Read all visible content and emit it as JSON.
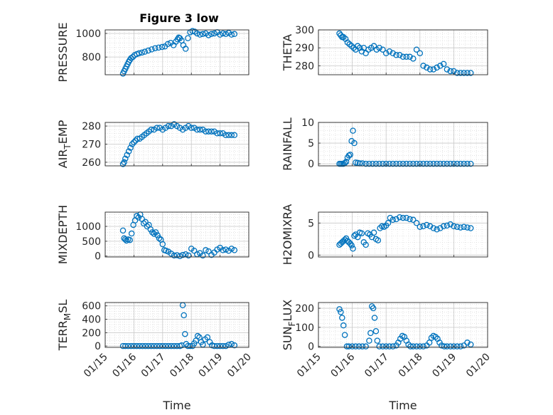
{
  "figure": {
    "title": "Figure 3 low",
    "marker_color": "#0072BD",
    "grid": true,
    "minor_grid": true
  },
  "x_axis": {
    "label": "Time",
    "tick_values": [
      0,
      1,
      2,
      3,
      4,
      5
    ],
    "tick_labels": [
      "01/15",
      "01/16",
      "01/17",
      "01/18",
      "01/19",
      "01/20"
    ],
    "range": [
      0,
      5
    ]
  },
  "chart_data": [
    {
      "type": "scatter",
      "marker": "circle",
      "ylabel": "PRESSURE",
      "ylim": [
        650,
        1030
      ],
      "yticks": [
        800,
        1000
      ],
      "ytick_labels": [
        "800",
        "1000"
      ],
      "x": [
        0.62,
        0.66,
        0.7,
        0.74,
        0.78,
        0.82,
        0.86,
        0.9,
        0.96,
        1.02,
        1.1,
        1.18,
        1.28,
        1.38,
        1.5,
        1.62,
        1.74,
        1.86,
        1.98,
        2.08,
        2.18,
        2.28,
        2.38,
        2.46,
        2.52,
        2.56,
        2.6,
        2.66,
        2.72,
        2.8,
        2.88,
        2.96,
        3.04,
        3.12,
        3.2,
        3.3,
        3.4,
        3.5,
        3.6,
        3.7,
        3.8,
        3.9,
        4.0,
        4.1,
        4.2,
        4.3,
        4.4,
        4.5
      ],
      "y": [
        660,
        680,
        700,
        720,
        740,
        760,
        775,
        790,
        800,
        815,
        825,
        832,
        838,
        845,
        855,
        865,
        875,
        880,
        885,
        890,
        910,
        920,
        900,
        930,
        950,
        965,
        960,
        940,
        900,
        870,
        960,
        1010,
        1020,
        1015,
        1000,
        990,
        995,
        1000,
        985,
        995,
        1000,
        1010,
        990,
        1000,
        995,
        1005,
        990,
        995
      ]
    },
    {
      "type": "scatter",
      "marker": "circle",
      "ylabel": "THETA",
      "ylim": [
        275,
        300
      ],
      "yticks": [
        280,
        290,
        300
      ],
      "ytick_labels": [
        "280",
        "290",
        "300"
      ],
      "x": [
        0.62,
        0.66,
        0.7,
        0.74,
        0.8,
        0.86,
        0.92,
        0.98,
        1.04,
        1.1,
        1.16,
        1.22,
        1.28,
        1.34,
        1.4,
        1.48,
        1.56,
        1.64,
        1.72,
        1.8,
        1.9,
        2.0,
        2.1,
        2.2,
        2.3,
        2.4,
        2.5,
        2.6,
        2.7,
        2.8,
        2.9,
        3.0,
        3.1,
        3.2,
        3.3,
        3.4,
        3.5,
        3.6,
        3.7,
        3.8,
        3.9,
        4.0,
        4.1,
        4.2,
        4.3,
        4.4,
        4.5
      ],
      "y": [
        298,
        297,
        296,
        296,
        295,
        293,
        292,
        291,
        290,
        289,
        291,
        290,
        288,
        290,
        287,
        289,
        290,
        291,
        289,
        290,
        289,
        287,
        288,
        287,
        286,
        286,
        285,
        285,
        285,
        284,
        289,
        287,
        280,
        279,
        278,
        278,
        279,
        280,
        281,
        278,
        277,
        277,
        276,
        276,
        276,
        276,
        276
      ]
    },
    {
      "type": "scatter",
      "marker": "circle",
      "ylabel": "AIR_TEMP",
      "ylim": [
        258,
        282
      ],
      "yticks": [
        260,
        270,
        280
      ],
      "ytick_labels": [
        "260",
        "270",
        "280"
      ],
      "x": [
        0.62,
        0.66,
        0.7,
        0.76,
        0.82,
        0.88,
        0.94,
        1.0,
        1.06,
        1.12,
        1.2,
        1.28,
        1.36,
        1.44,
        1.52,
        1.6,
        1.7,
        1.8,
        1.9,
        2.0,
        2.1,
        2.2,
        2.3,
        2.4,
        2.5,
        2.6,
        2.7,
        2.8,
        2.9,
        3.0,
        3.1,
        3.2,
        3.3,
        3.4,
        3.5,
        3.6,
        3.7,
        3.8,
        3.9,
        4.0,
        4.1,
        4.2,
        4.3,
        4.4,
        4.5
      ],
      "y": [
        259,
        260,
        262,
        264,
        266,
        268,
        270,
        271,
        272,
        273,
        273,
        274,
        275,
        276,
        277,
        278,
        278,
        279,
        279,
        278,
        279,
        280,
        280,
        281,
        280,
        279,
        278,
        279,
        280,
        279,
        279,
        278,
        278,
        278,
        277,
        277,
        277,
        277,
        276,
        276,
        276,
        275,
        275,
        275,
        275
      ]
    },
    {
      "type": "scatter",
      "marker": "circle",
      "ylabel": "RAINFALL",
      "ylim": [
        -0.5,
        10
      ],
      "yticks": [
        0,
        5,
        10
      ],
      "ytick_labels": [
        "0",
        "5",
        "10"
      ],
      "x": [
        0.62,
        0.66,
        0.7,
        0.74,
        0.78,
        0.82,
        0.86,
        0.9,
        0.94,
        0.98,
        1.02,
        1.06,
        1.1,
        1.16,
        1.22,
        1.3,
        1.4,
        1.5,
        1.6,
        1.7,
        1.8,
        1.9,
        2.0,
        2.1,
        2.2,
        2.3,
        2.4,
        2.5,
        2.6,
        2.7,
        2.8,
        2.9,
        3.0,
        3.1,
        3.2,
        3.3,
        3.4,
        3.5,
        3.6,
        3.7,
        3.8,
        3.9,
        4.0,
        4.1,
        4.2,
        4.3,
        4.4,
        4.5
      ],
      "y": [
        0,
        0,
        0,
        0,
        0.2,
        0.5,
        1.5,
        2.0,
        2.2,
        5.5,
        8.0,
        5.0,
        0.3,
        0.2,
        0.1,
        0.1,
        0,
        0,
        0,
        0,
        0,
        0,
        0,
        0,
        0,
        0,
        0,
        0,
        0,
        0,
        0,
        0,
        0,
        0,
        0,
        0,
        0,
        0,
        0,
        0,
        0,
        0,
        0,
        0,
        0,
        0,
        0,
        0
      ]
    },
    {
      "type": "scatter",
      "marker": "circle",
      "ylabel": "MIXDEPTH",
      "ylim": [
        -30,
        1480
      ],
      "yticks": [
        0,
        500,
        1000
      ],
      "ytick_labels": [
        "0",
        "500",
        "1000"
      ],
      "x": [
        0.62,
        0.66,
        0.7,
        0.74,
        0.8,
        0.86,
        0.92,
        0.98,
        1.04,
        1.1,
        1.16,
        1.22,
        1.28,
        1.34,
        1.4,
        1.46,
        1.52,
        1.58,
        1.64,
        1.7,
        1.76,
        1.82,
        1.88,
        1.94,
        2.0,
        2.06,
        2.12,
        2.2,
        2.3,
        2.4,
        2.5,
        2.6,
        2.7,
        2.8,
        2.9,
        3.0,
        3.1,
        3.2,
        3.3,
        3.4,
        3.5,
        3.6,
        3.7,
        3.8,
        3.9,
        4.0,
        4.1,
        4.2,
        4.3,
        4.4,
        4.5
      ],
      "y": [
        860,
        600,
        560,
        520,
        560,
        540,
        760,
        1050,
        1200,
        1350,
        1300,
        1400,
        1250,
        1100,
        1150,
        1000,
        1050,
        900,
        800,
        750,
        800,
        700,
        600,
        550,
        400,
        200,
        180,
        150,
        80,
        20,
        30,
        0,
        40,
        60,
        20,
        250,
        180,
        60,
        100,
        20,
        200,
        160,
        40,
        120,
        220,
        280,
        200,
        220,
        180,
        250,
        200
      ]
    },
    {
      "type": "scatter",
      "marker": "circle",
      "ylabel": "H2OMIXRA",
      "ylim": [
        -0.3,
        6.7
      ],
      "yticks": [
        0,
        5
      ],
      "ytick_labels": [
        "0",
        "5"
      ],
      "x": [
        0.62,
        0.66,
        0.7,
        0.74,
        0.78,
        0.82,
        0.86,
        0.9,
        0.94,
        0.98,
        1.02,
        1.06,
        1.1,
        1.16,
        1.22,
        1.28,
        1.34,
        1.4,
        1.46,
        1.52,
        1.58,
        1.64,
        1.7,
        1.76,
        1.82,
        1.88,
        1.94,
        2.0,
        2.06,
        2.12,
        2.2,
        2.3,
        2.4,
        2.5,
        2.6,
        2.7,
        2.8,
        2.9,
        3.0,
        3.1,
        3.2,
        3.3,
        3.4,
        3.5,
        3.6,
        3.7,
        3.8,
        3.9,
        4.0,
        4.1,
        4.2,
        4.3,
        4.4,
        4.5
      ],
      "y": [
        1.6,
        1.8,
        2.0,
        2.2,
        2.4,
        2.6,
        2.2,
        2.0,
        1.8,
        1.5,
        1.0,
        3.0,
        3.2,
        2.8,
        3.5,
        3.4,
        2.0,
        1.6,
        3.4,
        3.2,
        2.8,
        3.5,
        2.5,
        2.3,
        4.2,
        4.5,
        4.4,
        4.6,
        5.0,
        5.8,
        5.5,
        5.6,
        5.9,
        5.8,
        5.8,
        5.6,
        5.5,
        5.0,
        4.4,
        4.5,
        4.7,
        4.5,
        4.2,
        4.0,
        4.2,
        4.5,
        4.6,
        4.8,
        4.5,
        4.4,
        4.3,
        4.4,
        4.3,
        4.2
      ]
    },
    {
      "type": "scatter",
      "marker": "circle",
      "ylabel": "TERR_MSL",
      "ylim": [
        -20,
        650
      ],
      "yticks": [
        0,
        200,
        400,
        600
      ],
      "ytick_labels": [
        "0",
        "200",
        "400",
        "600"
      ],
      "x": [
        0.62,
        0.7,
        0.8,
        0.9,
        1.0,
        1.1,
        1.2,
        1.3,
        1.4,
        1.5,
        1.6,
        1.7,
        1.8,
        1.9,
        2.0,
        2.1,
        2.2,
        2.3,
        2.4,
        2.5,
        2.6,
        2.66,
        2.7,
        2.74,
        2.78,
        2.82,
        2.88,
        2.96,
        3.04,
        3.1,
        3.16,
        3.22,
        3.28,
        3.34,
        3.4,
        3.48,
        3.56,
        3.64,
        3.72,
        3.8,
        3.9,
        4.0,
        4.1,
        4.2,
        4.3,
        4.4,
        4.5
      ],
      "y": [
        0,
        0,
        0,
        0,
        0,
        0,
        0,
        0,
        0,
        0,
        0,
        0,
        0,
        0,
        0,
        0,
        0,
        0,
        0,
        0,
        0,
        10,
        610,
        460,
        180,
        30,
        0,
        0,
        0,
        40,
        80,
        150,
        130,
        60,
        20,
        100,
        130,
        60,
        10,
        0,
        0,
        0,
        0,
        0,
        20,
        30,
        10
      ]
    },
    {
      "type": "scatter",
      "marker": "circle",
      "ylabel": "SUN_FLUX",
      "ylim": [
        -5,
        230
      ],
      "yticks": [
        0,
        100,
        200
      ],
      "ytick_labels": [
        "0",
        "100",
        "200"
      ],
      "x": [
        0.62,
        0.66,
        0.7,
        0.74,
        0.78,
        0.84,
        0.9,
        1.0,
        1.1,
        1.2,
        1.3,
        1.4,
        1.5,
        1.54,
        1.58,
        1.62,
        1.66,
        1.7,
        1.74,
        1.8,
        1.9,
        2.0,
        2.1,
        2.2,
        2.3,
        2.36,
        2.42,
        2.48,
        2.54,
        2.6,
        2.66,
        2.72,
        2.8,
        2.9,
        3.0,
        3.1,
        3.2,
        3.28,
        3.34,
        3.4,
        3.46,
        3.52,
        3.58,
        3.64,
        3.72,
        3.8,
        3.9,
        4.0,
        4.1,
        4.2,
        4.3,
        4.4,
        4.5
      ],
      "y": [
        195,
        180,
        150,
        110,
        60,
        0,
        0,
        0,
        0,
        0,
        0,
        0,
        30,
        70,
        210,
        200,
        150,
        80,
        30,
        0,
        0,
        0,
        0,
        0,
        5,
        20,
        40,
        55,
        50,
        30,
        10,
        0,
        0,
        0,
        0,
        0,
        5,
        20,
        45,
        55,
        50,
        40,
        20,
        5,
        0,
        0,
        0,
        0,
        0,
        0,
        5,
        20,
        10
      ]
    }
  ],
  "panel_labels": [
    {
      "main": "PRESSURE",
      "sub": ""
    },
    {
      "main": "THETA",
      "sub": ""
    },
    {
      "main": "AIR",
      "sub": "T",
      "rest": "EMP"
    },
    {
      "main": "RAINFALL",
      "sub": ""
    },
    {
      "main": "MIXDEPTH",
      "sub": ""
    },
    {
      "main": "H2OMIXRA",
      "sub": ""
    },
    {
      "main": "TERR",
      "sub": "M",
      "rest": "SL"
    },
    {
      "main": "SUN",
      "sub": "F",
      "rest": "LUX"
    }
  ]
}
